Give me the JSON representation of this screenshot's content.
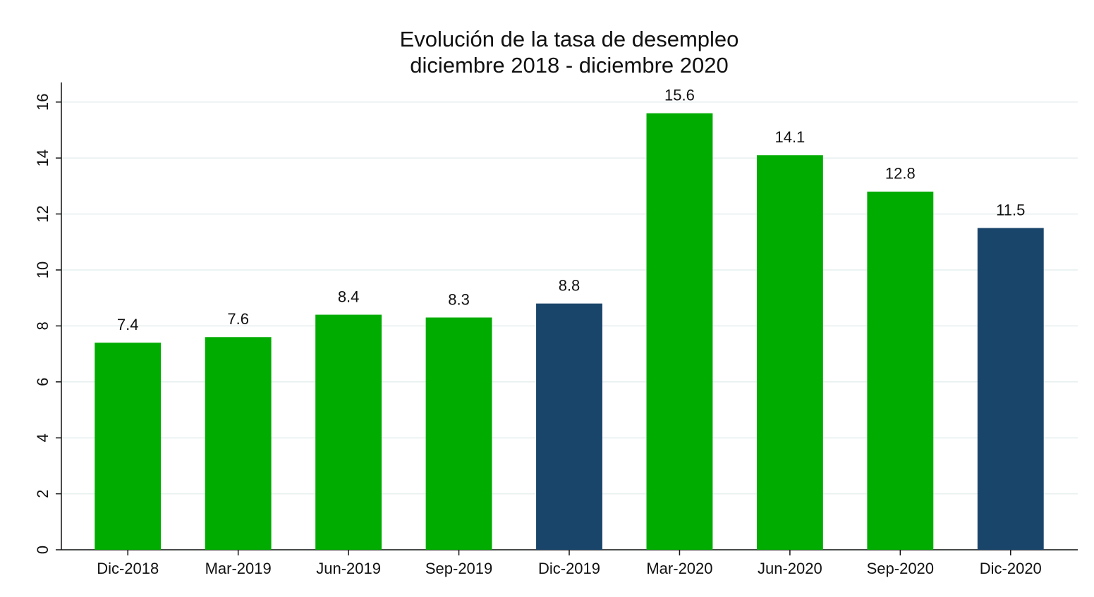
{
  "chart_data": {
    "type": "bar",
    "title": "Evolución de la tasa de desempleo",
    "subtitle": "diciembre 2018 - diciembre 2020",
    "categories": [
      "Dic-2018",
      "Mar-2019",
      "Jun-2019",
      "Sep-2019",
      "Dic-2019",
      "Mar-2020",
      "Jun-2020",
      "Sep-2020",
      "Dic-2020"
    ],
    "values": [
      7.4,
      7.6,
      8.4,
      8.3,
      8.8,
      15.6,
      14.1,
      12.8,
      11.5
    ],
    "colors": [
      "#00ac00",
      "#00ac00",
      "#00ac00",
      "#00ac00",
      "#1a456b",
      "#00ac00",
      "#00ac00",
      "#00ac00",
      "#1a456b"
    ],
    "ylim": [
      0,
      16.7
    ],
    "yticks": [
      0,
      2,
      4,
      6,
      8,
      10,
      12,
      14,
      16
    ],
    "grid": true
  }
}
